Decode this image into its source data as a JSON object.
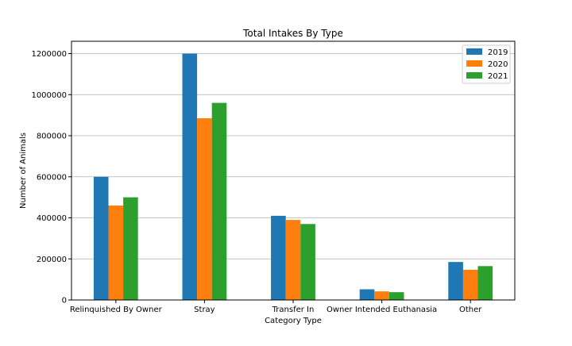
{
  "chart_data": {
    "type": "bar",
    "title": "Total Intakes By Type",
    "xlabel": "Category Type",
    "ylabel": "Number of Animals",
    "categories": [
      "Relinquished By Owner",
      "Stray",
      "Transfer In",
      "Owner Intended Euthanasia",
      "Other"
    ],
    "series": [
      {
        "name": "2019",
        "color": "#1f77b4",
        "values": [
          600000,
          1200000,
          410000,
          52000,
          185000
        ]
      },
      {
        "name": "2020",
        "color": "#ff7f0e",
        "values": [
          460000,
          885000,
          390000,
          42000,
          147000
        ]
      },
      {
        "name": "2021",
        "color": "#2ca02c",
        "values": [
          500000,
          960000,
          370000,
          38000,
          165000
        ]
      }
    ],
    "ylim": [
      0,
      1260000
    ],
    "yticks": [
      "0",
      "200000",
      "400000",
      "600000",
      "800000",
      "1000000",
      "1200000"
    ],
    "grid": "horizontal",
    "legend_position": "top-right"
  }
}
